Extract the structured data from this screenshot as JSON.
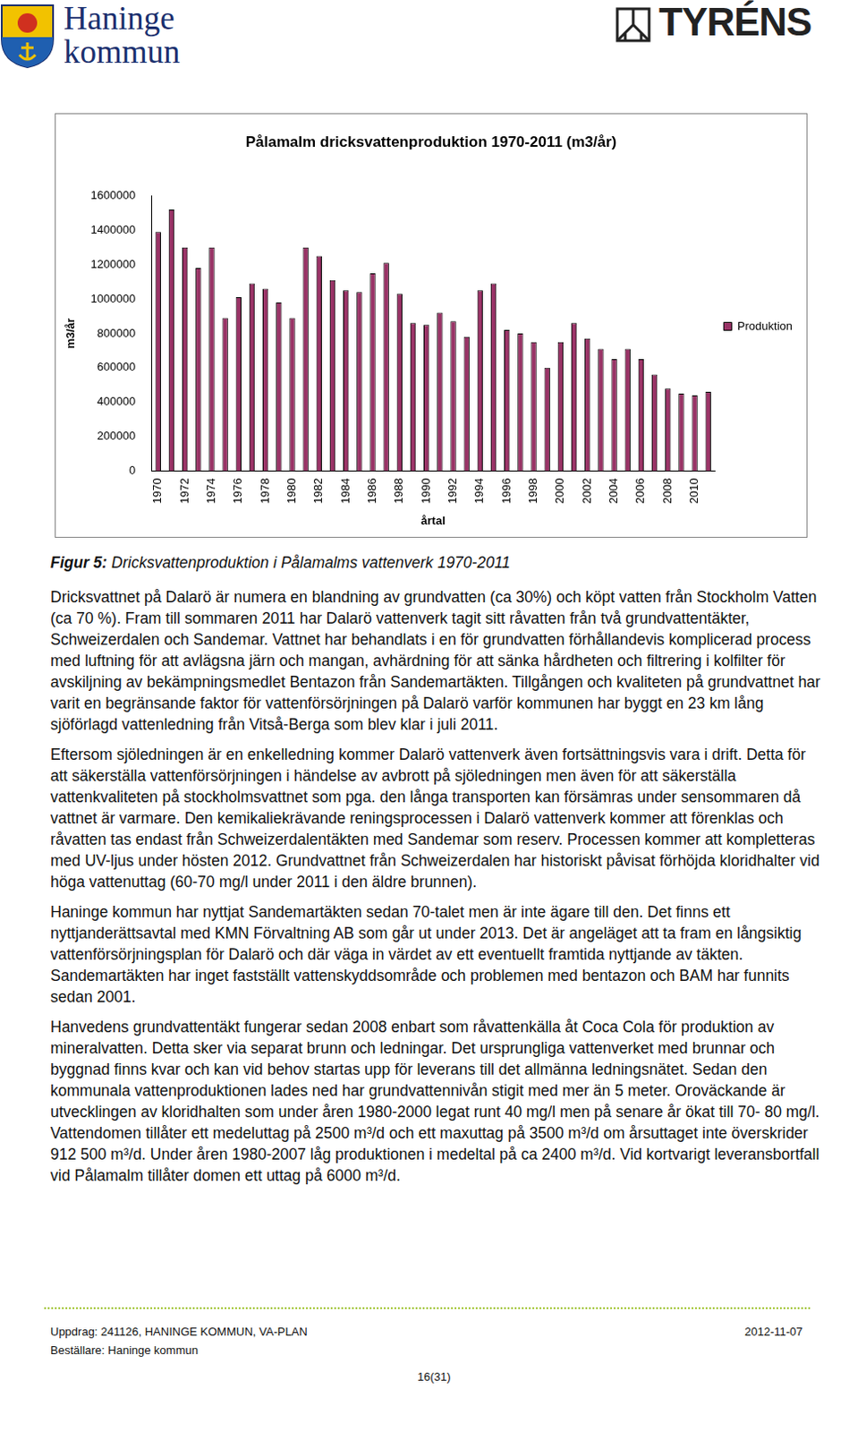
{
  "header": {
    "left": [
      "Haninge",
      "kommun"
    ],
    "right": "TYRÉNS"
  },
  "chart_data": {
    "type": "bar",
    "title": "Pålamalm dricksvattenproduktion 1970-2011 (m3/år)",
    "xlabel": "årtal",
    "ylabel": "m3/år",
    "categories": [
      "1970",
      null,
      "1972",
      null,
      "1974",
      null,
      "1976",
      null,
      "1978",
      null,
      "1980",
      null,
      "1982",
      null,
      "1984",
      null,
      "1986",
      null,
      "1988",
      null,
      "1990",
      null,
      "1992",
      null,
      "1994",
      null,
      "1996",
      null,
      "1998",
      null,
      "2000",
      null,
      "2002",
      null,
      "2004",
      null,
      "2006",
      null,
      "2008",
      null,
      "2010",
      null
    ],
    "series": [
      {
        "name": "Produktion",
        "color": "#993366",
        "values": [
          1390000,
          1520000,
          1300000,
          1180000,
          1300000,
          890000,
          1010000,
          1090000,
          1060000,
          980000,
          890000,
          1300000,
          1250000,
          1110000,
          1050000,
          1040000,
          1150000,
          1210000,
          1030000,
          860000,
          850000,
          920000,
          870000,
          780000,
          1050000,
          1090000,
          820000,
          800000,
          750000,
          600000,
          750000,
          860000,
          770000,
          710000,
          650000,
          710000,
          650000,
          560000,
          480000,
          450000,
          440000,
          460000
        ]
      }
    ],
    "ylim": [
      0,
      1600000
    ],
    "yticks": [
      0,
      200000,
      400000,
      600000,
      800000,
      1000000,
      1200000,
      1400000,
      1600000
    ],
    "grid": false,
    "legend": "right"
  },
  "caption": {
    "label": "Figur 5:",
    "text": "Dricksvattenproduktion i Pålamalms vattenverk 1970-2011"
  },
  "body": [
    "Dricksvattnet på Dalarö är numera en blandning av grundvatten (ca 30%) och köpt vatten från Stockholm Vatten (ca 70 %). Fram till sommaren 2011 har Dalarö vattenverk tagit sitt råvatten från två grundvattentäkter, Schweizerdalen och Sandemar. Vattnet har behandlats i en för grundvatten förhållandevis komplicerad process med luftning för att avlägsna järn och mangan, avhärdning för att sänka hårdheten och filtrering i kolfilter för avskiljning av bekämpningsmedlet Bentazon från Sandemartäkten. Tillgången och kvaliteten på grundvattnet har varit en begränsande faktor för vattenförsörjningen på Dalarö varför kommunen har byggt en 23 km lång sjöförlagd vattenledning från Vitså-Berga som blev klar i juli 2011.",
    "Eftersom sjöledningen är en enkelledning kommer Dalarö vattenverk även fortsättningsvis vara i drift. Detta för att säkerställa vattenförsörjningen i händelse av avbrott på sjöledningen men även för att säkerställa vattenkvaliteten på stockholmsvattnet som pga. den långa transporten kan försämras under sensommaren då vattnet är varmare. Den kemikaliekrävande reningsprocessen i Dalarö vattenverk kommer att förenklas och råvatten tas endast från Schweizerdalentäkten med Sandemar som reserv. Processen kommer att kompletteras med UV-ljus under hösten 2012. Grundvattnet från Schweizerdalen har historiskt påvisat förhöjda kloridhalter vid höga vattenuttag (60-70 mg/l under 2011 i den äldre brunnen).",
    "Haninge kommun har nyttjat Sandemartäkten sedan 70-talet men är inte ägare till den. Det finns ett nyttjanderättsavtal med KMN Förvaltning AB som går ut under 2013. Det är angeläget att ta fram en långsiktig vattenförsörjningsplan för Dalarö och där väga in värdet av ett eventuellt framtida nyttjande av täkten. Sandemartäkten har inget fastställt vattenskyddsområde och problemen med bentazon och BAM har funnits sedan 2001.",
    "Hanvedens grundvattentäkt fungerar sedan 2008 enbart som råvattenkälla åt Coca Cola för produktion av mineralvatten. Detta sker via separat brunn och ledningar. Det ursprungliga vattenverket med brunnar och byggnad finns kvar och kan vid behov startas upp för leverans till det allmänna ledningsnätet. Sedan den kommunala vattenproduktionen lades ned har grundvattennivån stigit med mer än 5 meter. Oroväckande är utvecklingen av kloridhalten som under åren 1980-2000 legat runt 40 mg/l men på senare år ökat till 70- 80 mg/l. Vattendomen tillåter ett medeluttag på 2500 m³/d och ett maxuttag på 3500 m³/d om årsuttaget inte överskrider 912 500 m³/d. Under åren 1980-2007 låg produktionen i medeltal på ca 2400 m³/d. Vid kortvarigt leveransbortfall vid Pålamalm tillåter domen ett uttag på 6000 m³/d."
  ],
  "footer": {
    "left": [
      "Uppdrag: 241126, HANINGE KOMMUN, VA-PLAN",
      "Beställare: Haninge kommun"
    ],
    "date": "2012-11-07",
    "page": "16(31)"
  }
}
